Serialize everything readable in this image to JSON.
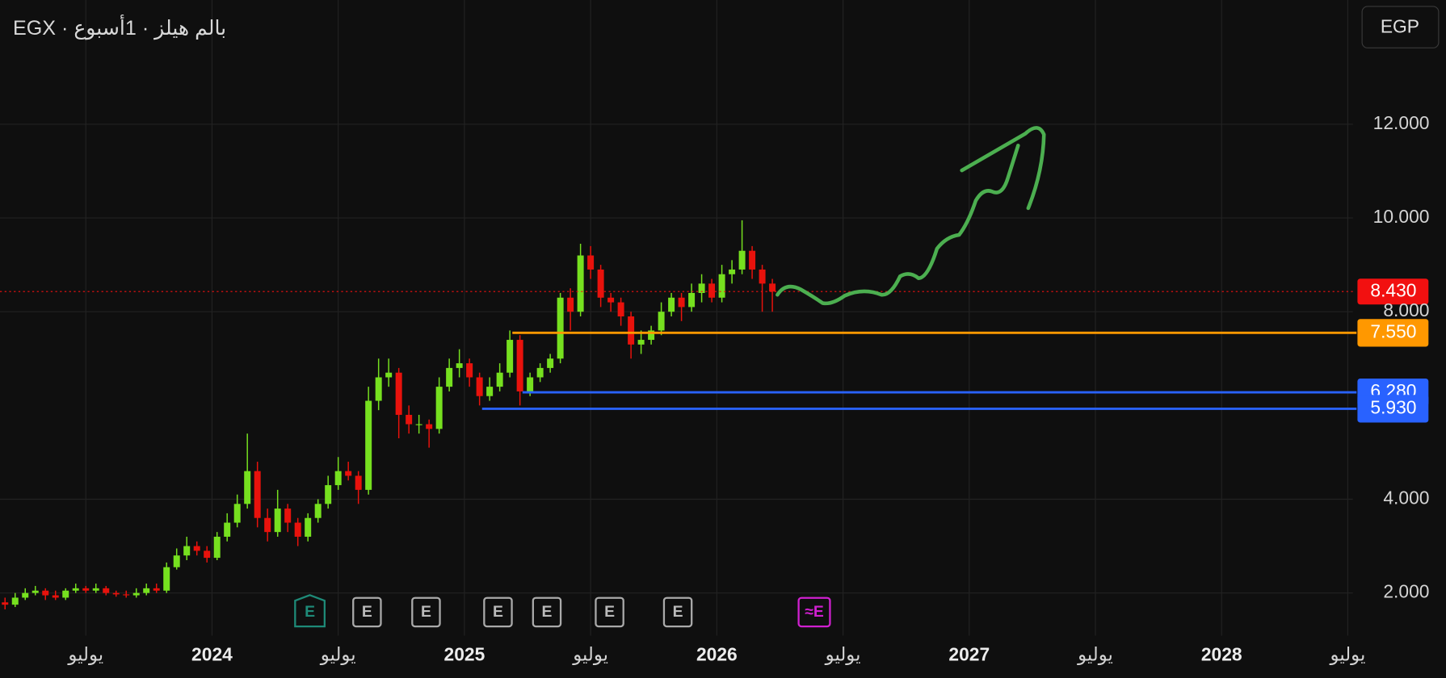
{
  "chart_data": {
    "type": "candlestick",
    "title": "EGX · بالم هيلز · 1أسبوع",
    "currency": "EGP",
    "up_color": "#76e01f",
    "down_color": "#e8120c",
    "grid": true,
    "xlim": [
      2023.16,
      2028.52
    ],
    "ylim": [
      1.09,
      14.65
    ],
    "xticks": [
      {
        "value": 2023.5,
        "label": "يوليو"
      },
      2024,
      {
        "value": 2024.5,
        "label": "يوليو"
      },
      2025,
      {
        "value": 2025.5,
        "label": "يوليو"
      },
      2026,
      {
        "value": 2026.5,
        "label": "يوليو"
      },
      2027,
      {
        "value": 2027.5,
        "label": "يوليو"
      },
      2028,
      {
        "value": 2028.5,
        "label": "يوليو"
      }
    ],
    "yticks": [
      {
        "value": 2,
        "label": "2.000"
      },
      {
        "value": 4,
        "label": "4.000"
      },
      {
        "value": 8,
        "label": "8.000"
      },
      {
        "value": 10,
        "label": "10.000"
      },
      {
        "value": 12,
        "label": "12.000"
      }
    ],
    "x": [
      2023.18,
      2023.22,
      2023.26,
      2023.3,
      2023.34,
      2023.38,
      2023.42,
      2023.46,
      2023.5,
      2023.54,
      2023.58,
      2023.62,
      2023.66,
      2023.7,
      2023.74,
      2023.78,
      2023.82,
      2023.86,
      2023.9,
      2023.94,
      2023.98,
      2024.02,
      2024.06,
      2024.1,
      2024.14,
      2024.18,
      2024.22,
      2024.26,
      2024.3,
      2024.34,
      2024.38,
      2024.42,
      2024.46,
      2024.5,
      2024.54,
      2024.58,
      2024.62,
      2024.66,
      2024.7,
      2024.74,
      2024.78,
      2024.82,
      2024.86,
      2024.9,
      2024.94,
      2024.98,
      2025.02,
      2025.06,
      2025.1,
      2025.14,
      2025.18,
      2025.22,
      2025.26,
      2025.3,
      2025.34,
      2025.38,
      2025.42,
      2025.46,
      2025.5,
      2025.54,
      2025.58,
      2025.62,
      2025.66,
      2025.7,
      2025.74,
      2025.78,
      2025.82,
      2025.86,
      2025.9,
      2025.94,
      2025.98,
      2026.02,
      2026.06,
      2026.1,
      2026.14,
      2026.18,
      2026.22
    ],
    "open": [
      1.8,
      1.75,
      1.9,
      2.0,
      2.05,
      1.95,
      1.9,
      2.05,
      2.1,
      2.05,
      2.1,
      2.0,
      1.97,
      1.95,
      2.0,
      2.1,
      2.05,
      2.55,
      2.8,
      3.0,
      2.9,
      2.75,
      3.2,
      3.5,
      3.9,
      4.6,
      3.6,
      3.3,
      3.8,
      3.5,
      3.2,
      3.6,
      3.9,
      4.3,
      4.6,
      4.5,
      4.2,
      6.1,
      6.6,
      6.7,
      5.8,
      5.6,
      5.6,
      5.5,
      6.4,
      6.8,
      6.9,
      6.6,
      6.2,
      6.4,
      6.7,
      7.4,
      6.3,
      6.6,
      6.8,
      7.0,
      8.3,
      8.0,
      9.2,
      8.9,
      8.3,
      8.2,
      7.9,
      7.3,
      7.4,
      7.6,
      8.0,
      8.3,
      8.1,
      8.4,
      8.6,
      8.3,
      8.8,
      8.9,
      9.3,
      8.9,
      8.6
    ],
    "high": [
      1.9,
      2.0,
      2.1,
      2.15,
      2.1,
      2.05,
      2.1,
      2.2,
      2.15,
      2.2,
      2.15,
      2.05,
      2.05,
      2.1,
      2.2,
      2.2,
      2.65,
      2.95,
      3.2,
      3.1,
      3.0,
      3.3,
      3.7,
      4.1,
      5.4,
      4.8,
      3.8,
      4.2,
      3.9,
      3.6,
      3.7,
      4.0,
      4.5,
      4.9,
      4.8,
      4.6,
      6.4,
      7.0,
      7.0,
      6.8,
      6.0,
      5.8,
      5.7,
      6.6,
      7.0,
      7.2,
      7.0,
      6.7,
      6.6,
      6.9,
      7.6,
      7.5,
      6.7,
      6.9,
      7.1,
      8.4,
      8.5,
      9.45,
      9.4,
      9.0,
      8.4,
      8.3,
      8.0,
      7.6,
      7.7,
      8.2,
      8.4,
      8.4,
      8.6,
      8.8,
      8.7,
      9.0,
      9.1,
      9.95,
      9.4,
      9.0,
      8.7
    ],
    "low": [
      1.65,
      1.7,
      1.85,
      1.95,
      1.85,
      1.85,
      1.85,
      2.0,
      2.0,
      2.0,
      1.95,
      1.92,
      1.9,
      1.9,
      1.95,
      2.0,
      2.0,
      2.5,
      2.7,
      2.8,
      2.65,
      2.7,
      3.1,
      3.4,
      3.8,
      3.4,
      3.1,
      3.2,
      3.3,
      3.0,
      3.1,
      3.5,
      3.8,
      4.2,
      4.4,
      3.9,
      4.1,
      5.9,
      6.4,
      5.3,
      5.4,
      5.4,
      5.1,
      5.4,
      6.3,
      6.6,
      6.4,
      6.0,
      6.1,
      6.3,
      6.6,
      6.0,
      6.2,
      6.5,
      6.7,
      6.9,
      7.6,
      7.9,
      8.7,
      8.1,
      8.0,
      7.7,
      7.0,
      7.1,
      7.3,
      7.5,
      7.9,
      7.8,
      8.0,
      8.2,
      8.2,
      8.2,
      8.6,
      8.8,
      8.7,
      8.0,
      8.0
    ],
    "close": [
      1.75,
      1.9,
      2.0,
      2.05,
      1.95,
      1.9,
      2.05,
      2.1,
      2.05,
      2.1,
      2.0,
      1.97,
      1.95,
      2.0,
      2.1,
      2.05,
      2.55,
      2.8,
      3.0,
      2.9,
      2.75,
      3.2,
      3.5,
      3.9,
      4.6,
      3.6,
      3.3,
      3.8,
      3.5,
      3.2,
      3.6,
      3.9,
      4.3,
      4.6,
      4.5,
      4.2,
      6.1,
      6.6,
      6.7,
      5.8,
      5.6,
      5.6,
      5.5,
      6.4,
      6.8,
      6.9,
      6.6,
      6.2,
      6.4,
      6.7,
      7.4,
      6.3,
      6.6,
      6.8,
      7.0,
      8.3,
      8.0,
      9.2,
      8.9,
      8.3,
      8.2,
      7.9,
      7.3,
      7.4,
      7.6,
      8.0,
      8.3,
      8.1,
      8.4,
      8.6,
      8.3,
      8.8,
      8.9,
      9.3,
      8.9,
      8.6,
      8.43
    ],
    "last_price": {
      "value": 8.43,
      "label": "8.430",
      "color": "#f21010"
    },
    "levels": [
      {
        "value": 7.55,
        "label": "7.550",
        "color": "#ff9800",
        "x_start": 2025.19
      },
      {
        "value": 6.28,
        "label": "6.280",
        "color": "#2962ff",
        "x_start": 2025.23
      },
      {
        "value": 5.93,
        "label": "5.930",
        "color": "#2962ff",
        "x_start": 2025.07
      }
    ]
  }
}
